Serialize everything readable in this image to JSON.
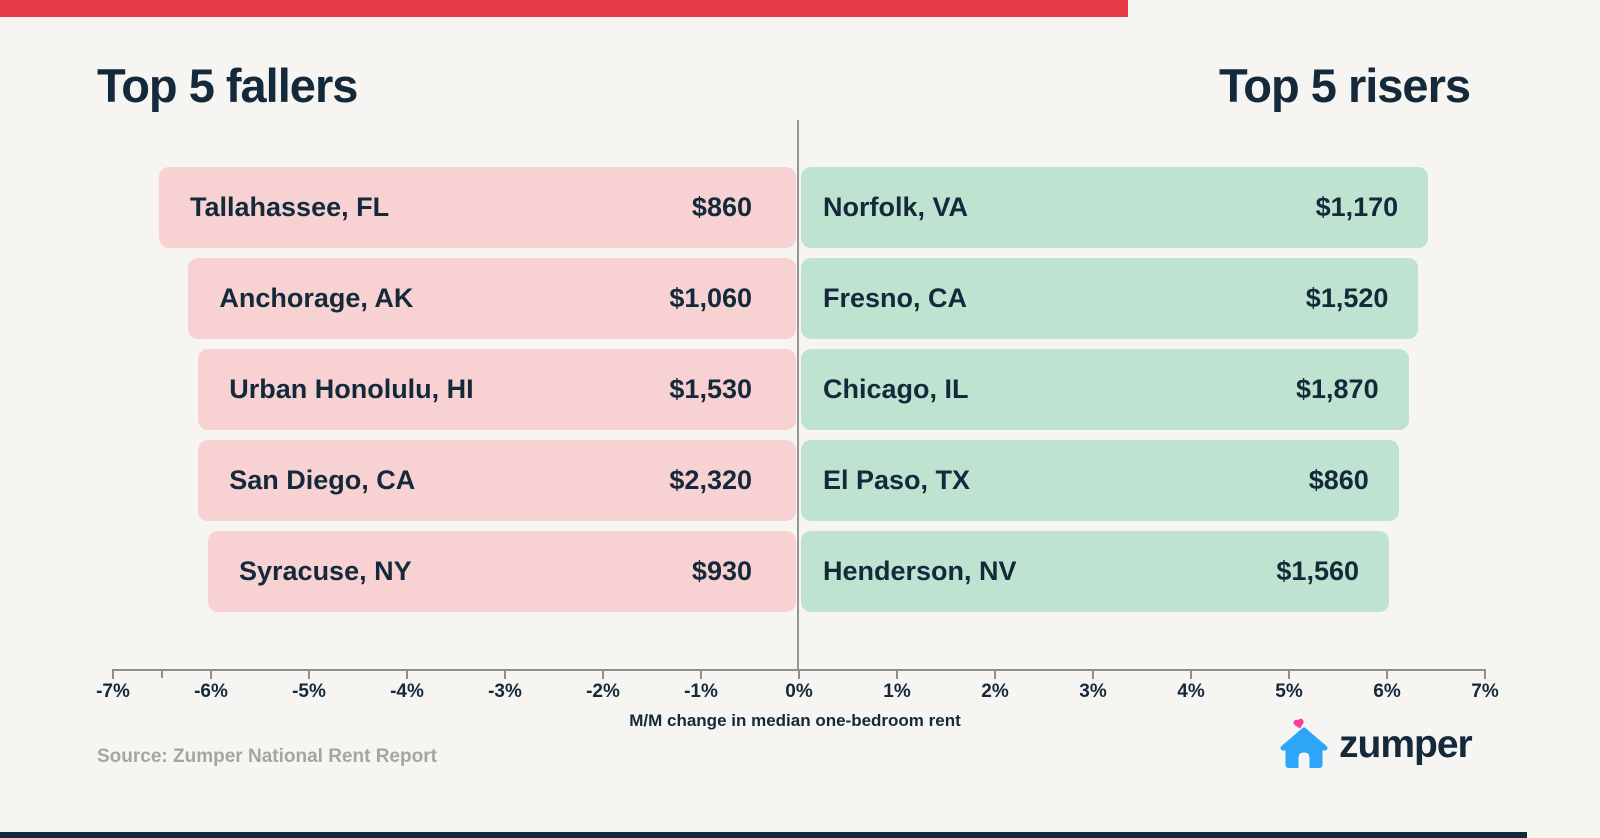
{
  "page": {
    "background": "#f6f5f2",
    "top_strip_color": "#e83a46",
    "bottom_strip_color": "#14293a"
  },
  "header": {
    "left_title": "Top 5 fallers",
    "right_title": "Top 5 risers"
  },
  "chart_data": {
    "type": "bar",
    "orientation": "horizontal-diverging",
    "title_left": "Top 5 fallers",
    "title_right": "Top 5 risers",
    "xlabel": "M/M change in median one-bedroom rent",
    "xlim": [
      -7,
      7
    ],
    "x_tick_labels": [
      "-7%",
      "-6%",
      "-5%",
      "-4%",
      "-3%",
      "-2%",
      "-1%",
      "0%",
      "1%",
      "2%",
      "3%",
      "4%",
      "5%",
      "6%",
      "7%"
    ],
    "minor_ticks_pct": [
      -6.5
    ],
    "grid": false,
    "fallers": [
      {
        "city": "Tallahassee, FL",
        "rent": "$860",
        "pct": -6.5
      },
      {
        "city": "Anchorage, AK",
        "rent": "$1,060",
        "pct": -6.2
      },
      {
        "city": "Urban Honolulu, HI",
        "rent": "$1,530",
        "pct": -6.1
      },
      {
        "city": "San Diego, CA",
        "rent": "$2,320",
        "pct": -6.1
      },
      {
        "city": "Syracuse, NY",
        "rent": "$930",
        "pct": -6.0
      }
    ],
    "risers": [
      {
        "city": "Norfolk, VA",
        "rent": "$1,170",
        "pct": 6.4
      },
      {
        "city": "Fresno, CA",
        "rent": "$1,520",
        "pct": 6.3
      },
      {
        "city": "Chicago, IL",
        "rent": "$1,870",
        "pct": 6.2
      },
      {
        "city": "El Paso, TX",
        "rent": "$860",
        "pct": 6.1
      },
      {
        "city": "Henderson, NV",
        "rent": "$1,560",
        "pct": 6.0
      }
    ],
    "colors": {
      "faller_bar": "#f8d2d2",
      "riser_bar": "#bfe3d1",
      "text": "#14293a",
      "axis": "#8f8f8f",
      "zumper_blue": "#2ca6f6",
      "heart_pink": "#ff3e9a"
    }
  },
  "footer": {
    "source": "Source: Zumper National Rent Report",
    "logo_text": "zumper"
  }
}
